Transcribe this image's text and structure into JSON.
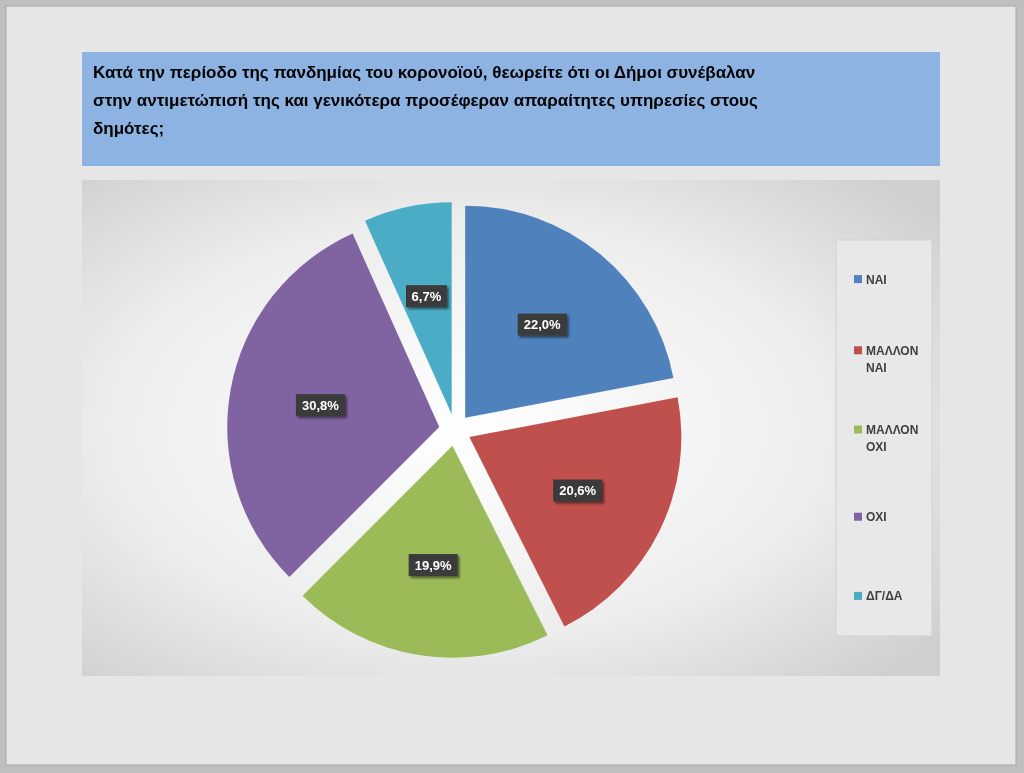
{
  "chart_data": {
    "type": "pie",
    "title": "Κατά την περίοδο της πανδημίας του κορονοϊού, θεωρείτε ότι οι Δήμοι συνέβαλαν στην αντιμετώπισή της και γενικότερα προσέφεραν απαραίτητες υπηρεσίες στους δημότες;",
    "categories": [
      "ΝΑΙ",
      "ΜΑΛΛΟΝ ΝΑΙ",
      "ΜΑΛΛΟΝ ΟΧΙ",
      "ΟΧΙ",
      "ΔΓ/ΔΑ"
    ],
    "values": [
      22.0,
      20.6,
      19.9,
      30.8,
      6.7
    ],
    "colors": [
      "#4f81bd",
      "#c0504d",
      "#9bbb59",
      "#8064a2",
      "#4bacc6"
    ],
    "value_labels": [
      "22,0%",
      "20,6%",
      "19,9%",
      "30,8%",
      "6,7%"
    ],
    "legend": "right"
  }
}
